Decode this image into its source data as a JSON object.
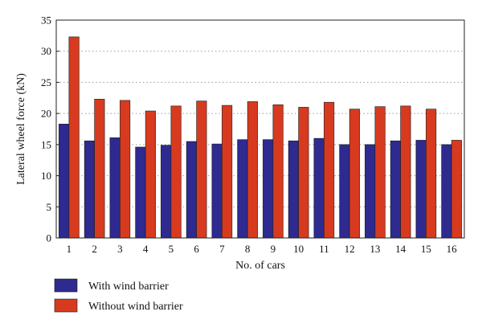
{
  "chart_data": {
    "type": "bar",
    "title": "",
    "xlabel": "No. of cars",
    "ylabel": "Lateral wheel force (kN)",
    "ylim": [
      0,
      35
    ],
    "yticks": [
      0,
      5,
      10,
      15,
      20,
      25,
      30,
      35
    ],
    "grid": "horizontal dotted",
    "legend_position": "bottom-left",
    "categories": [
      "1",
      "2",
      "3",
      "4",
      "5",
      "6",
      "7",
      "8",
      "9",
      "10",
      "11",
      "12",
      "13",
      "14",
      "15",
      "16"
    ],
    "series": [
      {
        "name": "With wind barrier",
        "color": "#2e2a8f",
        "values": [
          18.3,
          15.6,
          16.1,
          14.6,
          14.9,
          15.5,
          15.1,
          15.8,
          15.8,
          15.6,
          16.0,
          15.0,
          15.0,
          15.6,
          15.7,
          15.0
        ]
      },
      {
        "name": "Without wind barrier",
        "color": "#d83a1f",
        "values": [
          32.3,
          22.3,
          22.1,
          20.4,
          21.2,
          22.0,
          21.3,
          21.9,
          21.4,
          21.0,
          21.8,
          20.7,
          21.1,
          21.2,
          20.7,
          15.7
        ]
      }
    ]
  }
}
